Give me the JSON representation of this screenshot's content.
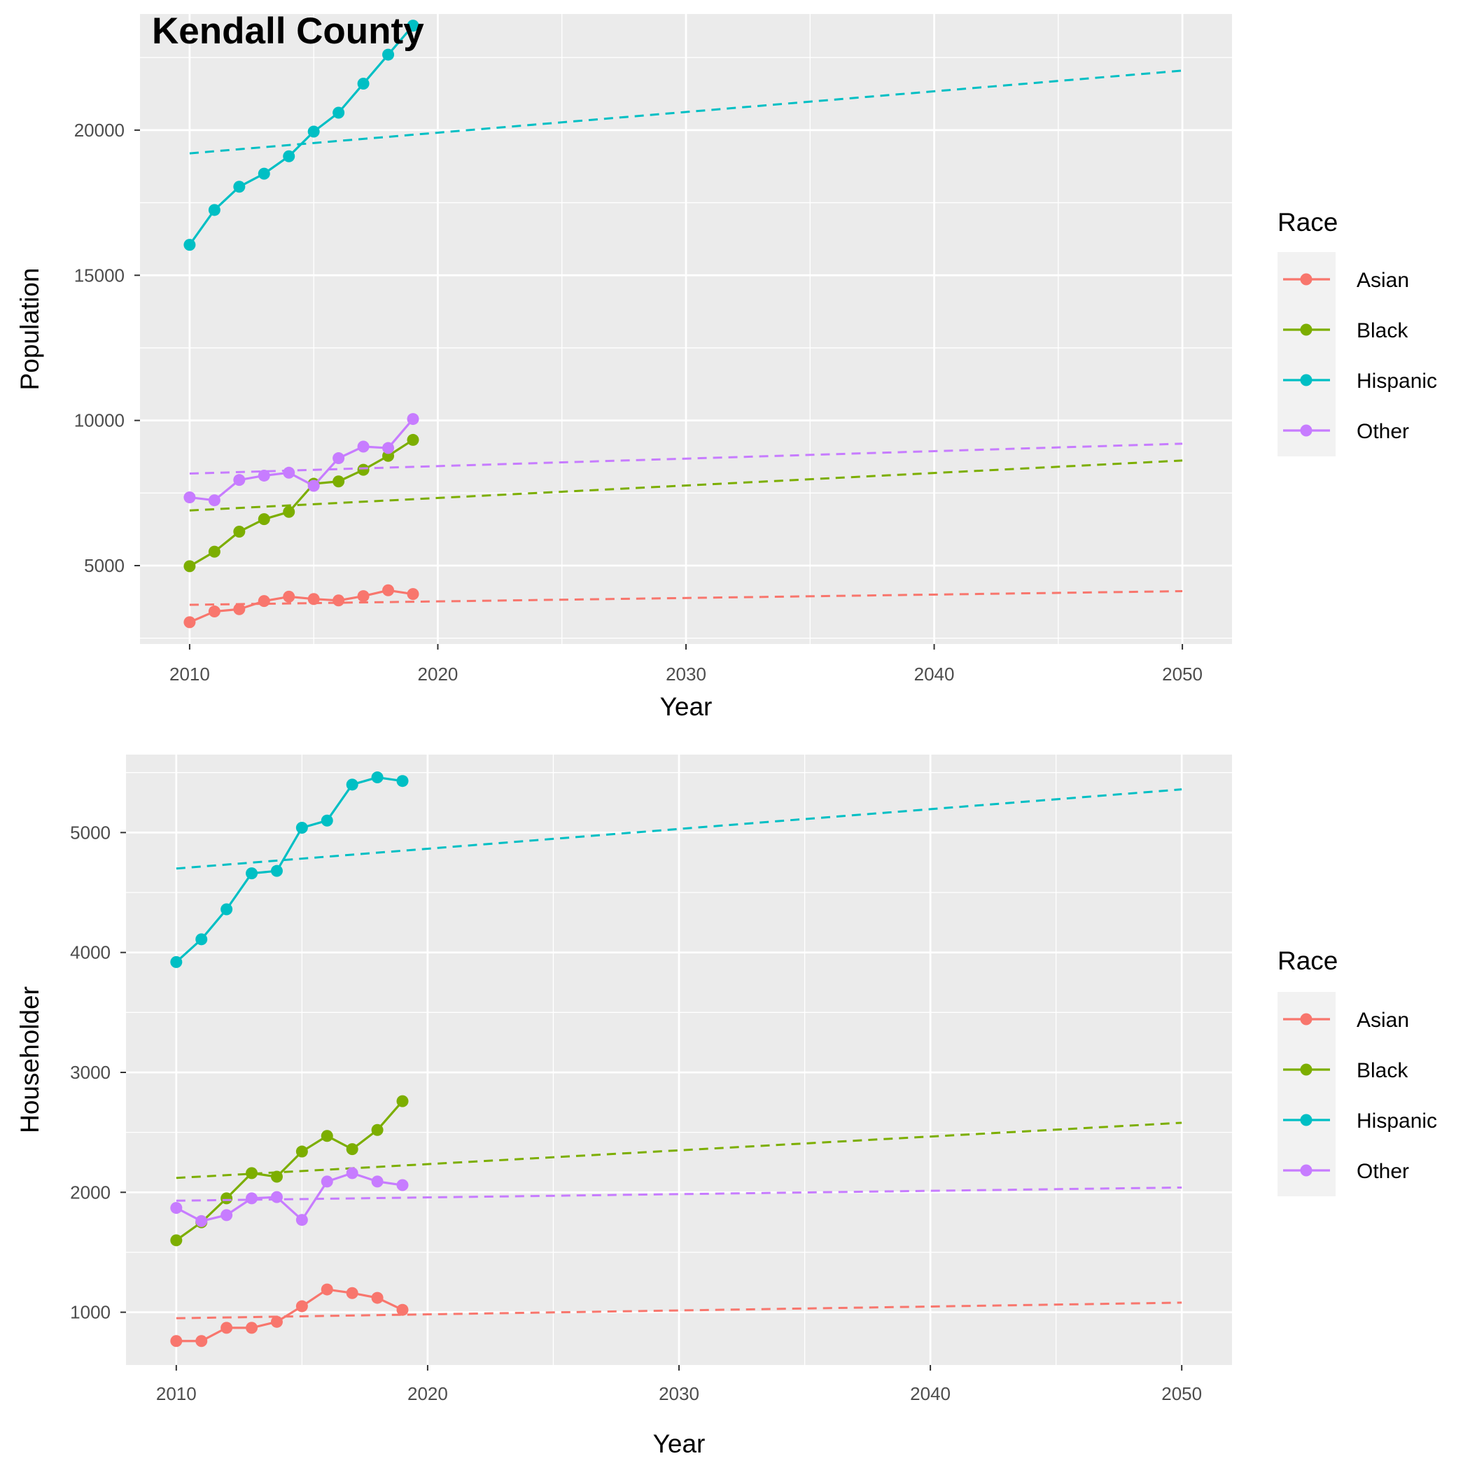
{
  "title": "Kendall County",
  "chart_data": [
    {
      "type": "line",
      "xlabel": "Year",
      "ylabel": "Population",
      "xlim": [
        2008,
        2052
      ],
      "ylim": [
        2300,
        24000
      ],
      "x_ticks": [
        2010,
        2020,
        2030,
        2040,
        2050
      ],
      "y_ticks": [
        5000,
        10000,
        15000,
        20000
      ],
      "grid": true,
      "legend": {
        "title": "Race",
        "position": "right"
      },
      "series": [
        {
          "name": "Asian",
          "color": "#F8766D",
          "x": [
            2010,
            2011,
            2012,
            2013,
            2014,
            2015,
            2016,
            2017,
            2018,
            2019
          ],
          "values": [
            3050,
            3420,
            3500,
            3780,
            3930,
            3850,
            3800,
            3950,
            4150,
            4020
          ],
          "trend": {
            "x": [
              2010,
              2050
            ],
            "values": [
              3650,
              4120
            ]
          }
        },
        {
          "name": "Black",
          "color": "#7CAE00",
          "x": [
            2010,
            2011,
            2012,
            2013,
            2014,
            2015,
            2016,
            2017,
            2018,
            2019
          ],
          "values": [
            4980,
            5480,
            6170,
            6600,
            6850,
            7820,
            7900,
            8300,
            8780,
            9330
          ],
          "trend": {
            "x": [
              2010,
              2050
            ],
            "values": [
              6900,
              8620
            ]
          }
        },
        {
          "name": "Hispanic",
          "color": "#00BFC4",
          "x": [
            2010,
            2011,
            2012,
            2013,
            2014,
            2015,
            2016,
            2017,
            2018,
            2019
          ],
          "values": [
            16050,
            17250,
            18050,
            18500,
            19100,
            19950,
            20600,
            21600,
            22600,
            23600
          ],
          "trend": {
            "x": [
              2010,
              2050
            ],
            "values": [
              19200,
              22050
            ]
          }
        },
        {
          "name": "Other",
          "color": "#C77CFF",
          "x": [
            2010,
            2011,
            2012,
            2013,
            2014,
            2015,
            2016,
            2017,
            2018,
            2019
          ],
          "values": [
            7350,
            7250,
            7950,
            8100,
            8200,
            7750,
            8700,
            9100,
            9050,
            10050
          ],
          "trend": {
            "x": [
              2010,
              2050
            ],
            "values": [
              8170,
              9200
            ]
          }
        }
      ]
    },
    {
      "type": "line",
      "xlabel": "Year",
      "ylabel": "Householder",
      "xlim": [
        2008,
        2052
      ],
      "ylim": [
        560,
        5650
      ],
      "x_ticks": [
        2010,
        2020,
        2030,
        2040,
        2050
      ],
      "y_ticks": [
        1000,
        2000,
        3000,
        4000,
        5000
      ],
      "grid": true,
      "legend": {
        "title": "Race",
        "position": "right"
      },
      "series": [
        {
          "name": "Asian",
          "color": "#F8766D",
          "x": [
            2010,
            2011,
            2012,
            2013,
            2014,
            2015,
            2016,
            2017,
            2018,
            2019
          ],
          "values": [
            760,
            760,
            870,
            870,
            920,
            1050,
            1190,
            1160,
            1120,
            1020
          ],
          "trend": {
            "x": [
              2010,
              2050
            ],
            "values": [
              950,
              1080
            ]
          }
        },
        {
          "name": "Black",
          "color": "#7CAE00",
          "x": [
            2010,
            2011,
            2012,
            2013,
            2014,
            2015,
            2016,
            2017,
            2018,
            2019
          ],
          "values": [
            1600,
            1750,
            1950,
            2160,
            2130,
            2340,
            2470,
            2360,
            2520,
            2760
          ],
          "trend": {
            "x": [
              2010,
              2050
            ],
            "values": [
              2120,
              2580
            ]
          }
        },
        {
          "name": "Hispanic",
          "color": "#00BFC4",
          "x": [
            2010,
            2011,
            2012,
            2013,
            2014,
            2015,
            2016,
            2017,
            2018,
            2019
          ],
          "values": [
            3920,
            4110,
            4360,
            4660,
            4680,
            5040,
            5100,
            5400,
            5460,
            5430
          ],
          "trend": {
            "x": [
              2010,
              2050
            ],
            "values": [
              4700,
              5360
            ]
          }
        },
        {
          "name": "Other",
          "color": "#C77CFF",
          "x": [
            2010,
            2011,
            2012,
            2013,
            2014,
            2015,
            2016,
            2017,
            2018,
            2019
          ],
          "values": [
            1870,
            1760,
            1810,
            1950,
            1960,
            1770,
            2090,
            2160,
            2090,
            2060
          ],
          "trend": {
            "x": [
              2010,
              2050
            ],
            "values": [
              1930,
              2040
            ]
          }
        }
      ]
    }
  ]
}
